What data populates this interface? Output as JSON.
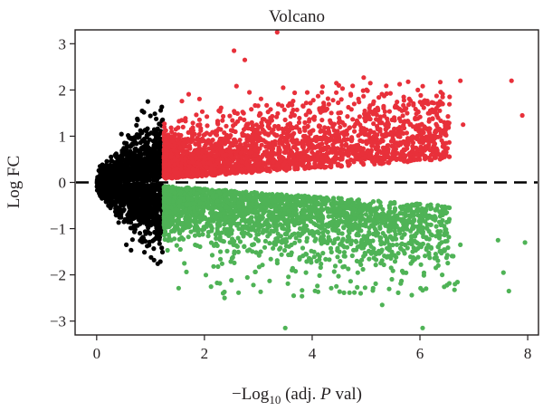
{
  "chart_data": {
    "type": "scatter",
    "title": "Volcano",
    "xlabel": {
      "prefix": "−Log",
      "subscript": "10",
      "paren_open": " (adj. ",
      "italic": "P",
      "paren_close": " val)"
    },
    "ylabel": "Log FC",
    "xlim": [
      -0.4,
      8.2
    ],
    "ylim": [
      -3.3,
      3.3
    ],
    "x_ticks": [
      0,
      2,
      4,
      6,
      8
    ],
    "y_ticks": [
      -3,
      -2,
      -1,
      0,
      1,
      2,
      3
    ],
    "x_tick_labels": [
      "0",
      "2",
      "4",
      "6",
      "8"
    ],
    "y_tick_labels": [
      "−3",
      "−2",
      "−1",
      "0",
      "1",
      "2",
      "3"
    ],
    "threshold_x": 1.25,
    "reference_line": {
      "y": 0,
      "style": "dashed"
    },
    "grid": false,
    "colors": {
      "not_significant": "#000000",
      "up": "#e8303a",
      "down": "#4fb356"
    },
    "notable_points": [
      {
        "x": 3.35,
        "y": 3.25,
        "group": "up"
      },
      {
        "x": 2.55,
        "y": 2.85,
        "group": "up"
      },
      {
        "x": 2.75,
        "y": 2.65,
        "group": "up"
      },
      {
        "x": 7.7,
        "y": 2.2,
        "group": "up"
      },
      {
        "x": 7.9,
        "y": 1.45,
        "group": "up"
      },
      {
        "x": 6.75,
        "y": 2.2,
        "group": "up"
      },
      {
        "x": 6.55,
        "y": 1.85,
        "group": "up"
      },
      {
        "x": 6.8,
        "y": 1.25,
        "group": "up"
      },
      {
        "x": 3.5,
        "y": -3.15,
        "group": "down"
      },
      {
        "x": 6.05,
        "y": -3.15,
        "group": "down"
      },
      {
        "x": 5.3,
        "y": -2.65,
        "group": "down"
      },
      {
        "x": 7.55,
        "y": -1.95,
        "group": "down"
      },
      {
        "x": 7.65,
        "y": -2.35,
        "group": "down"
      },
      {
        "x": 7.95,
        "y": -1.3,
        "group": "down"
      },
      {
        "x": 7.45,
        "y": -1.25,
        "group": "down"
      },
      {
        "x": 6.75,
        "y": -1.35,
        "group": "down"
      },
      {
        "x": 6.65,
        "y": -2.2,
        "group": "down"
      },
      {
        "x": 4.9,
        "y": -2.4,
        "group": "down"
      },
      {
        "x": 0.95,
        "y": 1.75,
        "group": "not_significant"
      },
      {
        "x": 0.55,
        "y": -1.35,
        "group": "not_significant"
      }
    ]
  }
}
